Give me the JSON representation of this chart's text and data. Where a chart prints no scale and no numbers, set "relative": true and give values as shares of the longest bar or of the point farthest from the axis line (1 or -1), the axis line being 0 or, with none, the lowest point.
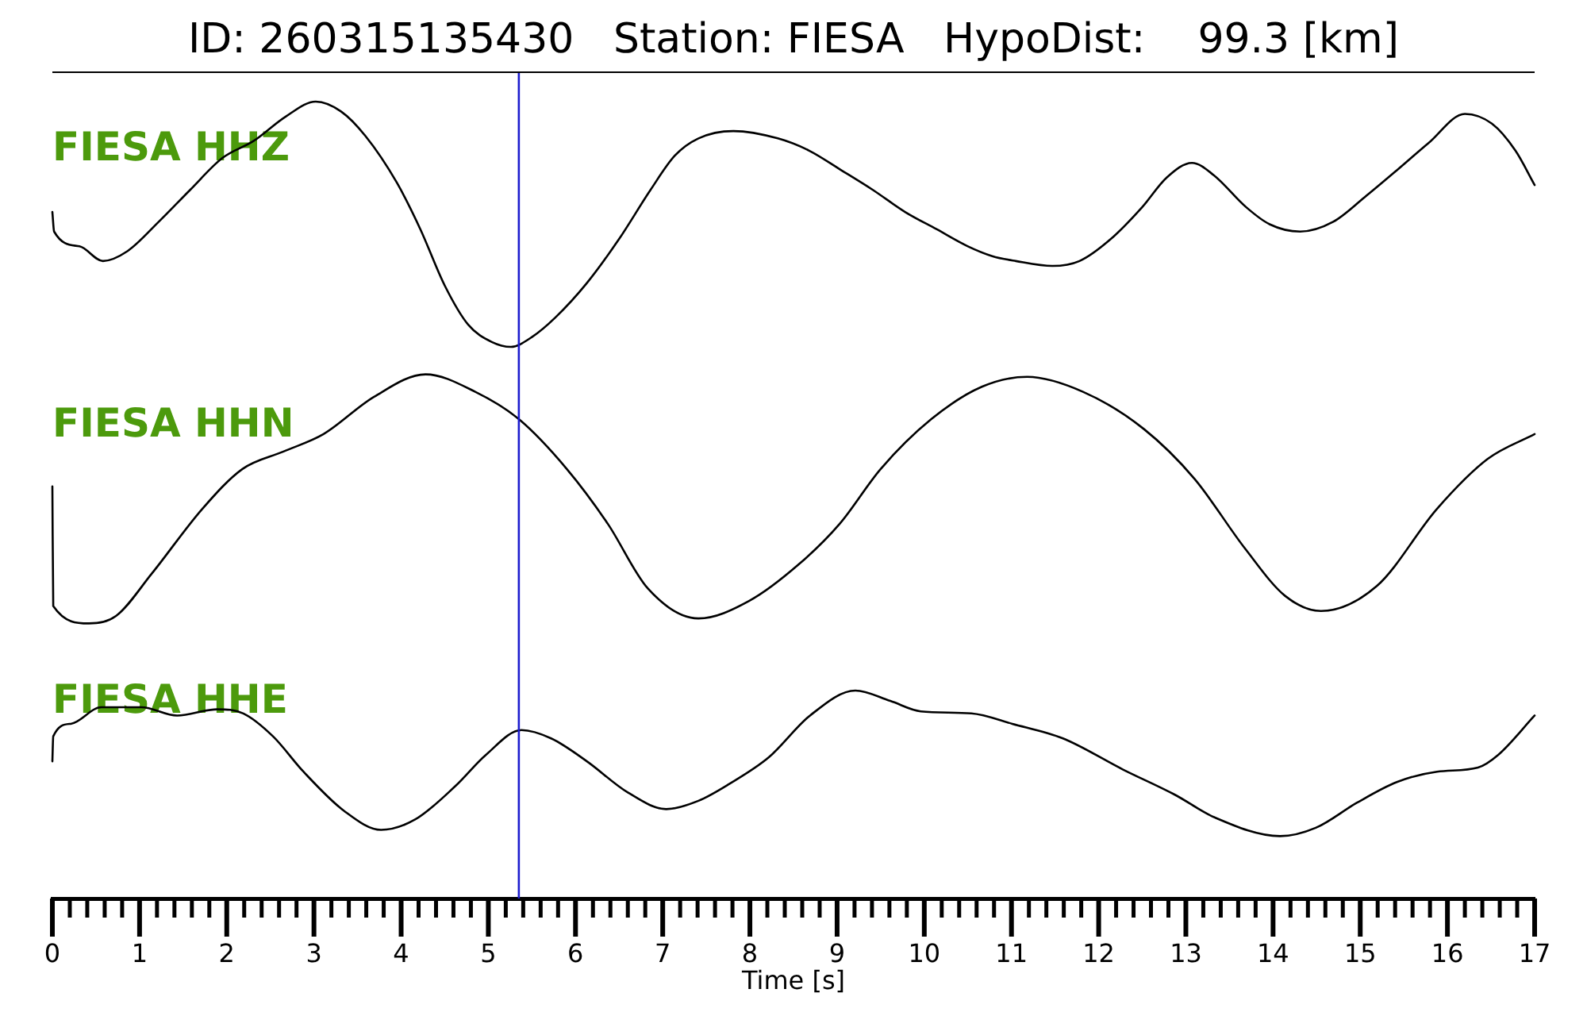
{
  "chart_data": [
    {
      "type": "line",
      "title": "ID: 260315135430   Station: FIESA   HypoDist:    99.3 [km]",
      "relative": true,
      "xlim": [
        0,
        17
      ],
      "tick_labels": false,
      "x": [
        0,
        0.02,
        0.31,
        0.58,
        0.86,
        1.22,
        1.58,
        1.95,
        2.31,
        2.68,
        3.02,
        3.31,
        3.59,
        3.95,
        4.22,
        4.5,
        4.77,
        5.04,
        5.26,
        5.5,
        5.77,
        6.13,
        6.5,
        6.86,
        7.14,
        7.41,
        7.81,
        8.32,
        8.68,
        9.05,
        9.41,
        9.78,
        10.14,
        10.5,
        10.78,
        11.05,
        11.47,
        11.78,
        12.14,
        12.5,
        12.78,
        13.07,
        13.32,
        13.69,
        13.96,
        14.31,
        14.69,
        15.05,
        15.42,
        15.78,
        16.2,
        16.51,
        16.78,
        17
      ],
      "series": [
        {
          "name": "FIESA HHZ",
          "color": "#000000",
          "values": [
            0.55,
            0.47,
            0.41,
            0.35,
            0.39,
            0.51,
            0.64,
            0.77,
            0.84,
            0.94,
            1,
            0.96,
            0.86,
            0.67,
            0.48,
            0.25,
            0.09,
            0.02,
            0,
            0.04,
            0.12,
            0.26,
            0.44,
            0.64,
            0.78,
            0.85,
            0.88,
            0.85,
            0.8,
            0.72,
            0.64,
            0.55,
            0.48,
            0.41,
            0.37,
            0.35,
            0.33,
            0.35,
            0.44,
            0.57,
            0.69,
            0.75,
            0.7,
            0.57,
            0.5,
            0.47,
            0.51,
            0.61,
            0.72,
            0.83,
            0.95,
            0.91,
            0.8,
            0.66
          ]
        }
      ],
      "ref_lines": [
        {
          "axis": "x",
          "value": 5.35,
          "color": "#1c1ccf"
        }
      ]
    },
    {
      "type": "line",
      "relative": true,
      "xlim": [
        0,
        17
      ],
      "tick_labels": false,
      "x": [
        0,
        0.01,
        0.42,
        0.73,
        1.14,
        1.72,
        2.18,
        2.65,
        3.11,
        3.69,
        4.28,
        4.85,
        5.35,
        5.9,
        6.37,
        6.83,
        7.41,
        7.99,
        8.57,
        9.03,
        9.5,
        10.08,
        10.66,
        11.18,
        11.82,
        12.52,
        13.1,
        13.68,
        14.14,
        14.55,
        15.19,
        15.88,
        16.46,
        17
      ],
      "series": [
        {
          "name": "FIESA HHN",
          "color": "#000000",
          "values": [
            0.55,
            0.07,
            0,
            0.03,
            0.2,
            0.46,
            0.62,
            0.69,
            0.76,
            0.91,
            1,
            0.93,
            0.82,
            0.62,
            0.4,
            0.14,
            0.02,
            0.09,
            0.24,
            0.4,
            0.62,
            0.82,
            0.95,
            0.99,
            0.93,
            0.78,
            0.58,
            0.3,
            0.11,
            0.05,
            0.15,
            0.46,
            0.66,
            0.76
          ]
        }
      ],
      "ref_lines": [
        {
          "axis": "x",
          "value": 5.35,
          "color": "#1c1ccf"
        }
      ]
    },
    {
      "type": "line",
      "relative": true,
      "xlim": [
        0,
        17
      ],
      "tick_labels": "x",
      "xlabel": "Time [s]",
      "xticks": [
        0,
        {
          "value": 0.2,
          "label": null
        },
        {
          "value": 0.4,
          "label": null
        },
        {
          "value": 0.6,
          "label": null
        },
        {
          "value": 0.8,
          "label": null
        },
        1,
        {
          "value": 1.2,
          "label": null
        },
        {
          "value": 1.4,
          "label": null
        },
        {
          "value": 1.6,
          "label": null
        },
        {
          "value": 1.8,
          "label": null
        },
        2,
        {
          "value": 2.2,
          "label": null
        },
        {
          "value": 2.4,
          "label": null
        },
        {
          "value": 2.6,
          "label": null
        },
        {
          "value": 2.8,
          "label": null
        },
        3,
        {
          "value": 3.2,
          "label": null
        },
        {
          "value": 3.4,
          "label": null
        },
        {
          "value": 3.6,
          "label": null
        },
        {
          "value": 3.8,
          "label": null
        },
        4,
        {
          "value": 4.2,
          "label": null
        },
        {
          "value": 4.4,
          "label": null
        },
        {
          "value": 4.6,
          "label": null
        },
        {
          "value": 4.8,
          "label": null
        },
        5,
        {
          "value": 5.2,
          "label": null
        },
        {
          "value": 5.4,
          "label": null
        },
        {
          "value": 5.6,
          "label": null
        },
        {
          "value": 5.8,
          "label": null
        },
        6,
        {
          "value": 6.2,
          "label": null
        },
        {
          "value": 6.4,
          "label": null
        },
        {
          "value": 6.6,
          "label": null
        },
        {
          "value": 6.8,
          "label": null
        },
        7,
        {
          "value": 7.2,
          "label": null
        },
        {
          "value": 7.4,
          "label": null
        },
        {
          "value": 7.6,
          "label": null
        },
        {
          "value": 7.8,
          "label": null
        },
        8,
        {
          "value": 8.2,
          "label": null
        },
        {
          "value": 8.4,
          "label": null
        },
        {
          "value": 8.6,
          "label": null
        },
        {
          "value": 8.8,
          "label": null
        },
        9,
        {
          "value": 9.2,
          "label": null
        },
        {
          "value": 9.4,
          "label": null
        },
        {
          "value": 9.6,
          "label": null
        },
        {
          "value": 9.8,
          "label": null
        },
        10,
        {
          "value": 10.2,
          "label": null
        },
        {
          "value": 10.4,
          "label": null
        },
        {
          "value": 10.6,
          "label": null
        },
        {
          "value": 10.8,
          "label": null
        },
        11,
        {
          "value": 11.2,
          "label": null
        },
        {
          "value": 11.4,
          "label": null
        },
        {
          "value": 11.6,
          "label": null
        },
        {
          "value": 11.8,
          "label": null
        },
        12,
        {
          "value": 12.2,
          "label": null
        },
        {
          "value": 12.4,
          "label": null
        },
        {
          "value": 12.6,
          "label": null
        },
        {
          "value": 12.8,
          "label": null
        },
        13,
        {
          "value": 13.2,
          "label": null
        },
        {
          "value": 13.4,
          "label": null
        },
        {
          "value": 13.6,
          "label": null
        },
        {
          "value": 13.8,
          "label": null
        },
        14,
        {
          "value": 14.2,
          "label": null
        },
        {
          "value": 14.4,
          "label": null
        },
        {
          "value": 14.6,
          "label": null
        },
        {
          "value": 14.8,
          "label": null
        },
        15,
        {
          "value": 15.2,
          "label": null
        },
        {
          "value": 15.4,
          "label": null
        },
        {
          "value": 15.6,
          "label": null
        },
        {
          "value": 15.8,
          "label": null
        },
        16,
        {
          "value": 16.2,
          "label": null
        },
        {
          "value": 16.4,
          "label": null
        },
        {
          "value": 16.6,
          "label": null
        },
        {
          "value": 16.8,
          "label": null
        },
        17
      ],
      "x": [
        0,
        0.01,
        0.21,
        0.56,
        1.02,
        1.43,
        1.89,
        2.19,
        2.53,
        2.88,
        3.35,
        3.77,
        4.16,
        4.62,
        4.97,
        5.38,
        5.72,
        6.13,
        6.6,
        7.04,
        7.41,
        7.76,
        8.22,
        8.69,
        9.21,
        9.61,
        9.96,
        10.54,
        11.01,
        11.59,
        12.28,
        12.87,
        13.33,
        14.08,
        14.49,
        14.96,
        15.42,
        15.88,
        16.35,
        16.58,
        17
      ],
      "series": [
        {
          "name": "FIESA HHE",
          "color": "#000000",
          "values": [
            0.66,
            0.78,
            0.84,
            0.92,
            0.92,
            0.88,
            0.91,
            0.89,
            0.78,
            0.61,
            0.42,
            0.33,
            0.38,
            0.54,
            0.69,
            0.81,
            0.77,
            0.66,
            0.51,
            0.43,
            0.47,
            0.55,
            0.68,
            0.88,
            1,
            0.95,
            0.9,
            0.89,
            0.84,
            0.77,
            0.62,
            0.5,
            0.39,
            0.3,
            0.34,
            0.46,
            0.56,
            0.61,
            0.63,
            0.69,
            0.88
          ]
        }
      ],
      "ref_lines": [
        {
          "axis": "x",
          "value": 5.35,
          "color": "#1c1ccf"
        }
      ]
    }
  ]
}
